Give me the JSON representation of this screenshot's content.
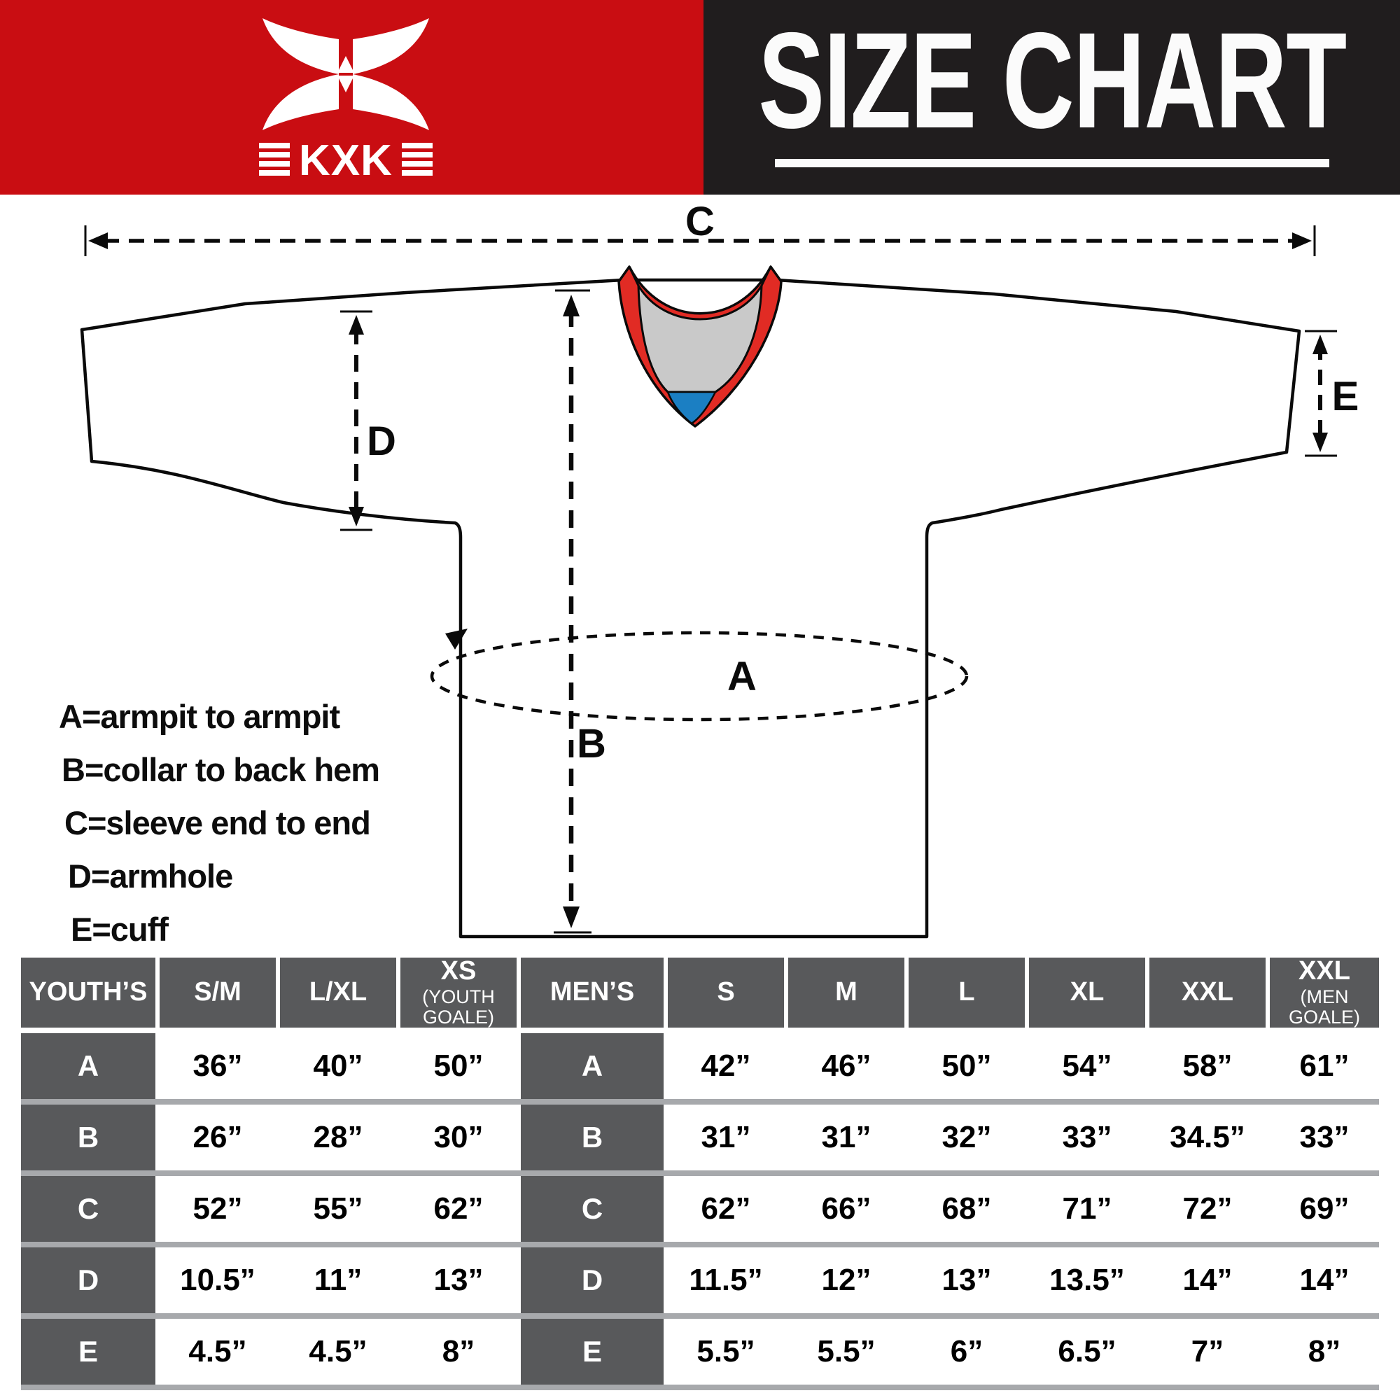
{
  "banner": {
    "title": "SIZE CHART",
    "red_bg": "#c90d12",
    "black_bg": "#201d1e",
    "brand": "KXK",
    "logo_icon": "kxk-bowtie-icon"
  },
  "diagram": {
    "dimension_labels": {
      "A": "A",
      "B": "B",
      "C": "C",
      "D": "D",
      "E": "E"
    },
    "legend_lines": [
      "A=armpit to armpit",
      "B=collar to back hem",
      "C=sleeve end to end",
      "D=armhole",
      "E=cuff"
    ],
    "colors": {
      "collar_red": "#e12b24",
      "collar_gray": "#c9c9c9",
      "collar_blue": "#1b7fc3",
      "outline": "#0a0a0a"
    }
  },
  "size_table": {
    "header_bg": "#58595b",
    "separator_gray": "#a7a9ac",
    "groups": [
      {
        "label": "YOUTH’S",
        "columns": [
          {
            "label": "S/M",
            "sub": ""
          },
          {
            "label": "L/XL",
            "sub": ""
          },
          {
            "label": "XS",
            "sub": "(YOUTH GOALE)"
          }
        ],
        "rows": [
          {
            "label": "A",
            "values": [
              "36”",
              "40”",
              "50”"
            ]
          },
          {
            "label": "B",
            "values": [
              "26”",
              "28”",
              "30”"
            ]
          },
          {
            "label": "C",
            "values": [
              "52”",
              "55”",
              "62”"
            ]
          },
          {
            "label": "D",
            "values": [
              "10.5”",
              "11”",
              "13”"
            ]
          },
          {
            "label": "E",
            "values": [
              "4.5”",
              "4.5”",
              "8”"
            ]
          }
        ]
      },
      {
        "label": "MEN’S",
        "columns": [
          {
            "label": "S",
            "sub": ""
          },
          {
            "label": "M",
            "sub": ""
          },
          {
            "label": "L",
            "sub": ""
          },
          {
            "label": "XL",
            "sub": ""
          },
          {
            "label": "XXL",
            "sub": ""
          },
          {
            "label": "XXL",
            "sub": "(MEN GOALE)"
          }
        ],
        "rows": [
          {
            "label": "A",
            "values": [
              "42”",
              "46”",
              "50”",
              "54”",
              "58”",
              "61”"
            ]
          },
          {
            "label": "B",
            "values": [
              "31”",
              "31”",
              "32”",
              "33”",
              "34.5”",
              "33”"
            ]
          },
          {
            "label": "C",
            "values": [
              "62”",
              "66”",
              "68”",
              "71”",
              "72”",
              "69”"
            ]
          },
          {
            "label": "D",
            "values": [
              "11.5”",
              "12”",
              "13”",
              "13.5”",
              "14”",
              "14”"
            ]
          },
          {
            "label": "E",
            "values": [
              "5.5”",
              "5.5”",
              "6”",
              "6.5”",
              "7”",
              "8”"
            ]
          }
        ]
      }
    ]
  },
  "chart_data": [
    {
      "type": "table",
      "title": "YOUTH’S",
      "columns": [
        "S/M",
        "L/XL",
        "XS (YOUTH GOALE)"
      ],
      "row_labels": [
        "A",
        "B",
        "C",
        "D",
        "E"
      ],
      "rows_inches": [
        [
          36,
          40,
          50
        ],
        [
          26,
          28,
          30
        ],
        [
          52,
          55,
          62
        ],
        [
          10.5,
          11,
          13
        ],
        [
          4.5,
          4.5,
          8
        ]
      ]
    },
    {
      "type": "table",
      "title": "MEN’S",
      "columns": [
        "S",
        "M",
        "L",
        "XL",
        "XXL",
        "XXL (MEN GOALE)"
      ],
      "row_labels": [
        "A",
        "B",
        "C",
        "D",
        "E"
      ],
      "rows_inches": [
        [
          42,
          46,
          50,
          54,
          58,
          61
        ],
        [
          31,
          31,
          32,
          33,
          34.5,
          33
        ],
        [
          62,
          66,
          68,
          71,
          72,
          69
        ],
        [
          11.5,
          12,
          13,
          13.5,
          14,
          14
        ],
        [
          5.5,
          5.5,
          6,
          6.5,
          7,
          8
        ]
      ]
    }
  ]
}
